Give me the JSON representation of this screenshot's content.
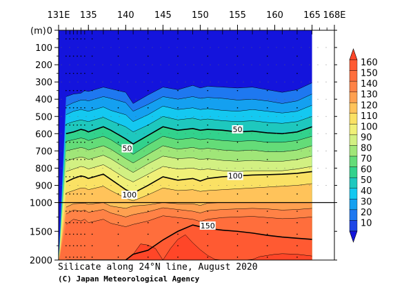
{
  "chart_data": {
    "type": "contour",
    "title": "Silicate along 24°N line, August 2020",
    "credit": "(C) Japan Meteorological Agency",
    "ylabel": "(m)",
    "x_ticks": [
      {
        "value": 131,
        "label": "131E"
      },
      {
        "value": 135,
        "label": "135"
      },
      {
        "value": 140,
        "label": "140"
      },
      {
        "value": 145,
        "label": "145"
      },
      {
        "value": 150,
        "label": "150"
      },
      {
        "value": 155,
        "label": "155"
      },
      {
        "value": 160,
        "label": "160"
      },
      {
        "value": 165,
        "label": "165"
      },
      {
        "value": 168,
        "label": "168E"
      }
    ],
    "xlim": [
      131,
      168
    ],
    "y_upper_ticks": [
      {
        "value": 0,
        "label": "0"
      },
      {
        "value": 100,
        "label": "100"
      },
      {
        "value": 200,
        "label": "200"
      },
      {
        "value": 300,
        "label": "300"
      },
      {
        "value": 400,
        "label": "400"
      },
      {
        "value": 500,
        "label": "500"
      },
      {
        "value": 600,
        "label": "600"
      },
      {
        "value": 700,
        "label": "700"
      },
      {
        "value": 800,
        "label": "800"
      },
      {
        "value": 900,
        "label": "900"
      },
      {
        "value": 1000,
        "label": "1000"
      }
    ],
    "y_lower_ticks": [
      {
        "value": 1500,
        "label": "1500"
      },
      {
        "value": 2000,
        "label": "2000"
      }
    ],
    "upper_range": [
      0,
      1000
    ],
    "lower_range": [
      1000,
      2000
    ],
    "data_xmax": 165,
    "station_x": [
      132,
      132.5,
      133,
      133.5,
      134,
      134.5,
      135.5,
      137,
      139,
      141,
      143,
      145,
      147,
      149,
      151,
      153,
      155,
      157,
      159,
      161,
      163,
      165
    ],
    "levels": [
      10,
      20,
      30,
      40,
      50,
      60,
      70,
      80,
      90,
      100,
      110,
      120,
      130,
      140,
      150,
      160
    ],
    "colorbar": {
      "labels": [
        "160",
        "150",
        "140",
        "130",
        "120",
        "110",
        "100",
        "90",
        "80",
        "70",
        "60",
        "50",
        "40",
        "30",
        "20",
        "10"
      ],
      "colors": [
        "#ff5a32",
        "#ff6e3c",
        "#ff8246",
        "#ffa050",
        "#ffc35a",
        "#fae164",
        "#f0f078",
        "#d2f082",
        "#a0e678",
        "#64dc78",
        "#32d28c",
        "#1ec8be",
        "#14c8f0",
        "#14a0f0",
        "#1e78f0",
        "#1e46e6"
      ],
      "top_arrow_color": "#ff4628",
      "bottom_arrow_color": "#1414dc"
    },
    "contour_labels": [
      {
        "text": "50",
        "x": 155,
        "y": 575
      },
      {
        "text": "50",
        "x": 140.2,
        "y": 685
      },
      {
        "text": "100",
        "x": 140.5,
        "y": 955
      },
      {
        "text": "100",
        "x": 154.7,
        "y": 845
      },
      {
        "text": "150",
        "x": 151,
        "y": 1400
      }
    ],
    "contours": [
      {
        "level": 10,
        "x": [
          132,
          133,
          134,
          134.5,
          135,
          137,
          138,
          140,
          141,
          143,
          145,
          147,
          149,
          150,
          151,
          153,
          155,
          157,
          159,
          161,
          163,
          165
        ],
        "y": [
          385,
          370,
          365,
          350,
          355,
          330,
          340,
          360,
          425,
          375,
          330,
          345,
          320,
          335,
          325,
          330,
          335,
          330,
          345,
          360,
          345,
          305
        ]
      },
      {
        "level": 20,
        "x": [
          132,
          133,
          134,
          134.5,
          135,
          137,
          138,
          140,
          141,
          143,
          145,
          147,
          149,
          150,
          151,
          153,
          155,
          157,
          159,
          161,
          163,
          165
        ],
        "y": [
          440,
          420,
          405,
          405,
          410,
          385,
          395,
          420,
          470,
          430,
          385,
          400,
          385,
          395,
          390,
          395,
          405,
          400,
          410,
          425,
          410,
          370
        ]
      },
      {
        "level": 30,
        "x": [
          132,
          133,
          134,
          134.5,
          135,
          137,
          138,
          140,
          141,
          143,
          145,
          147,
          149,
          150,
          151,
          153,
          155,
          157,
          159,
          161,
          163,
          165
        ],
        "y": [
          490,
          470,
          460,
          465,
          470,
          445,
          465,
          490,
          530,
          490,
          440,
          460,
          450,
          460,
          455,
          465,
          470,
          460,
          470,
          480,
          470,
          435
        ]
      },
      {
        "level": 40,
        "x": [
          132,
          133,
          134,
          134.5,
          135,
          137,
          138,
          140,
          141,
          143,
          145,
          147,
          149,
          150,
          151,
          153,
          155,
          157,
          159,
          161,
          163,
          165
        ],
        "y": [
          545,
          530,
          520,
          525,
          530,
          505,
          525,
          560,
          590,
          550,
          500,
          520,
          510,
          520,
          515,
          525,
          530,
          525,
          535,
          540,
          530,
          500
        ]
      },
      {
        "level": 50,
        "x": [
          132,
          133,
          134,
          134.5,
          135,
          137,
          138,
          140,
          141,
          143,
          145,
          147,
          149,
          150,
          151,
          153,
          155,
          157,
          159,
          161,
          163,
          165
        ],
        "y": [
          600,
          590,
          575,
          580,
          590,
          560,
          580,
          630,
          660,
          610,
          560,
          580,
          570,
          580,
          575,
          580,
          590,
          585,
          595,
          600,
          590,
          560
        ]
      },
      {
        "level": 60,
        "x": [
          132,
          133,
          134,
          134.5,
          135,
          137,
          138,
          140,
          141,
          143,
          145,
          147,
          149,
          150,
          151,
          153,
          155,
          157,
          159,
          161,
          163,
          165
        ],
        "y": [
          645,
          635,
          625,
          630,
          640,
          615,
          635,
          690,
          720,
          665,
          615,
          635,
          625,
          635,
          630,
          640,
          645,
          640,
          650,
          650,
          640,
          615
        ]
      },
      {
        "level": 70,
        "x": [
          132,
          133,
          134,
          134.5,
          135,
          137,
          138,
          140,
          141,
          143,
          145,
          147,
          149,
          150,
          151,
          153,
          155,
          157,
          159,
          161,
          163,
          165
        ],
        "y": [
          700,
          690,
          680,
          685,
          695,
          670,
          690,
          745,
          770,
          720,
          670,
          690,
          680,
          690,
          685,
          695,
          700,
          695,
          705,
          705,
          695,
          670
        ]
      },
      {
        "level": 80,
        "x": [
          132,
          133,
          134,
          134.5,
          135,
          137,
          138,
          140,
          141,
          143,
          145,
          147,
          149,
          150,
          151,
          153,
          155,
          157,
          159,
          161,
          163,
          165
        ],
        "y": [
          760,
          745,
          735,
          740,
          750,
          725,
          745,
          800,
          825,
          775,
          730,
          745,
          740,
          750,
          745,
          755,
          760,
          755,
          760,
          760,
          750,
          730
        ]
      },
      {
        "level": 90,
        "x": [
          132,
          133,
          134,
          134.5,
          135,
          137,
          138,
          140,
          141,
          143,
          145,
          147,
          149,
          150,
          151,
          153,
          155,
          157,
          159,
          161,
          163,
          165
        ],
        "y": [
          820,
          805,
          790,
          795,
          805,
          780,
          805,
          860,
          880,
          835,
          790,
          805,
          800,
          810,
          805,
          815,
          820,
          815,
          815,
          815,
          805,
          790
        ]
      },
      {
        "level": 100,
        "x": [
          132,
          133,
          134,
          134.5,
          135,
          137,
          138,
          140,
          141,
          143,
          145,
          147,
          149,
          150,
          151,
          153,
          155,
          157,
          159,
          161,
          163,
          165
        ],
        "y": [
          880,
          860,
          845,
          850,
          860,
          835,
          865,
          925,
          945,
          900,
          850,
          870,
          860,
          875,
          860,
          850,
          845,
          840,
          838,
          835,
          830,
          820
        ]
      },
      {
        "level": 110,
        "x": [
          132,
          133,
          134,
          134.5,
          135,
          137,
          138,
          140,
          141,
          143,
          145,
          147,
          149,
          150,
          151,
          153,
          155,
          157,
          159,
          161,
          163,
          165
        ],
        "y": [
          945,
          930,
          915,
          915,
          925,
          905,
          930,
          975,
          990,
          955,
          915,
          930,
          925,
          935,
          930,
          925,
          920,
          915,
          910,
          905,
          900,
          890
        ]
      },
      {
        "level": 120,
        "x": [
          132,
          133,
          134,
          134.5,
          135,
          137,
          138,
          140,
          141,
          143,
          145,
          147,
          149,
          150,
          151,
          153,
          155,
          157,
          159,
          161,
          163,
          165
        ],
        "y": [
          1080,
          1020,
          1015,
          1010,
          1030,
          1000,
          1060,
          1100,
          1060,
          1040,
          1000,
          1020,
          1020,
          1050,
          1010,
          1000,
          1000,
          1000,
          1000,
          1000,
          1000,
          1000
        ]
      },
      {
        "level": 130,
        "x": [
          132,
          133,
          134,
          134.5,
          135,
          137,
          138,
          140,
          141,
          143,
          145,
          147,
          149,
          150,
          151,
          153,
          155,
          157,
          159,
          161,
          163,
          165
        ],
        "y": [
          1200,
          1130,
          1150,
          1130,
          1170,
          1120,
          1180,
          1250,
          1210,
          1160,
          1090,
          1120,
          1150,
          1180,
          1140,
          1120,
          1110,
          1100,
          1110,
          1130,
          1120,
          1100
        ]
      },
      {
        "level": 140,
        "x": [
          132,
          133,
          134,
          134.5,
          135,
          137,
          138,
          140,
          141,
          143,
          145,
          147,
          149,
          150,
          151,
          153,
          155,
          157,
          159,
          161,
          163,
          165
        ],
        "y": [
          1380,
          1290,
          1320,
          1290,
          1350,
          1290,
          1360,
          1420,
          1380,
          1320,
          1230,
          1260,
          1290,
          1330,
          1290,
          1260,
          1250,
          1240,
          1260,
          1280,
          1270,
          1250
        ]
      },
      {
        "level": 150,
        "x": [
          132,
          133,
          134,
          135,
          137,
          138,
          140,
          141,
          143,
          145,
          147,
          149,
          150,
          151,
          153,
          155,
          157,
          159,
          161,
          163,
          165
        ],
        "y": [
          2000,
          2000,
          2000,
          2000,
          2000,
          2000,
          2000,
          1900,
          1830,
          1650,
          1500,
          1390,
          1420,
          1450,
          1480,
          1500,
          1530,
          1570,
          1600,
          1620,
          1640
        ]
      },
      {
        "level": 160,
        "x": [
          140,
          141,
          142,
          143,
          144,
          145,
          146,
          147,
          148,
          149,
          150,
          151,
          152,
          153,
          154,
          155,
          156,
          157,
          158,
          159,
          160,
          161,
          163,
          165
        ],
        "y": [
          2000,
          1900,
          1720,
          1740,
          1800,
          2000,
          1800,
          1640,
          1560,
          1700,
          1820,
          1920,
          1990,
          2000,
          2000,
          2000,
          2000,
          1990,
          1940,
          1920,
          1900,
          1890,
          1900,
          1930
        ]
      }
    ]
  }
}
